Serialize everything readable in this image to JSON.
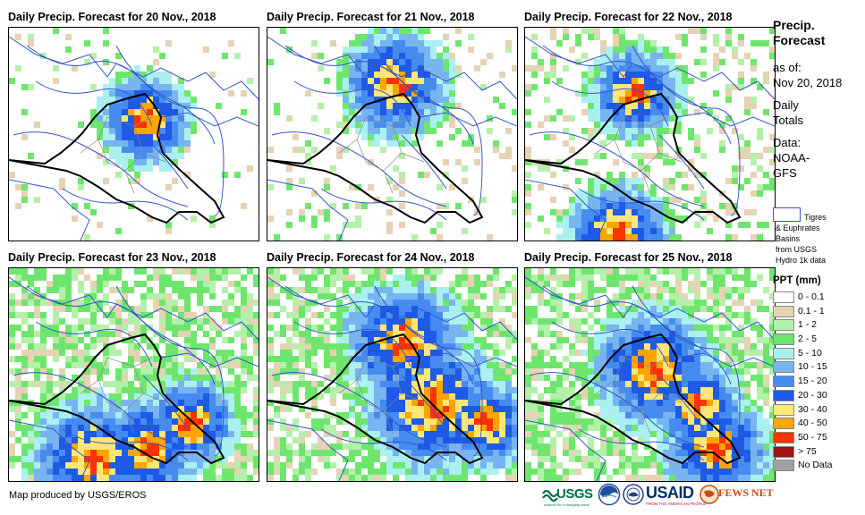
{
  "panels": [
    {
      "title": "Daily Precip. Forecast for 20 Nov., 2018",
      "intensity": 0.0
    },
    {
      "title": "Daily Precip. Forecast for 21 Nov., 2018",
      "intensity": 0.1
    },
    {
      "title": "Daily Precip. Forecast for 22 Nov., 2018",
      "intensity": 0.35
    },
    {
      "title": "Daily Precip. Forecast for 23 Nov., 2018",
      "intensity": 0.85
    },
    {
      "title": "Daily Precip. Forecast for 24 Nov., 2018",
      "intensity": 0.7
    },
    {
      "title": "Daily Precip. Forecast for 25 Nov., 2018",
      "intensity": 0.9
    }
  ],
  "sidebar": {
    "heading_line1": "Precip.",
    "heading_line2": "Forecast",
    "asof_label": "as of:",
    "asof_date": "Nov 20, 2018",
    "daily_line1": "Daily",
    "daily_line2": "Totals",
    "data_label": "Data:",
    "data_source_line1": "NOAA-",
    "data_source_line2": "GFS"
  },
  "basins": {
    "line1": "Tigres",
    "line2": "& Euphrates",
    "line3": "Basins",
    "line4": "from USGS",
    "line5": "Hydro 1k data"
  },
  "legend": {
    "title": "PPT (mm)",
    "items": [
      {
        "label": "0 - 0.1",
        "color": "#ffffff"
      },
      {
        "label": "0.1 - 1",
        "color": "#e6d2b4"
      },
      {
        "label": "1 - 2",
        "color": "#b4f0aa"
      },
      {
        "label": "2 - 5",
        "color": "#6ee66e"
      },
      {
        "label": "5 - 10",
        "color": "#aaf0f0"
      },
      {
        "label": "10 - 15",
        "color": "#78b4f0"
      },
      {
        "label": "15 - 20",
        "color": "#468cf0"
      },
      {
        "label": "20 - 30",
        "color": "#1e5ae6"
      },
      {
        "label": "30 - 40",
        "color": "#ffe678"
      },
      {
        "label": "40 - 50",
        "color": "#ffa500"
      },
      {
        "label": "50 - 75",
        "color": "#ff3200"
      },
      {
        "label": "> 75",
        "color": "#a01414"
      },
      {
        "label": "No Data",
        "color": "#a0a0a0"
      }
    ]
  },
  "credit": "Map produced by USGS/EROS",
  "logos": {
    "usgs": "USGS",
    "usgs_tagline": "science for a changing world",
    "usaid": "USAID",
    "usaid_tagline": "FROM THE AMERICAN PEOPLE",
    "fewsnet": "FEWS NET"
  },
  "colors": {
    "basin_line": "#3355cc",
    "country_line": "#000000",
    "admin_line": "#888888"
  }
}
